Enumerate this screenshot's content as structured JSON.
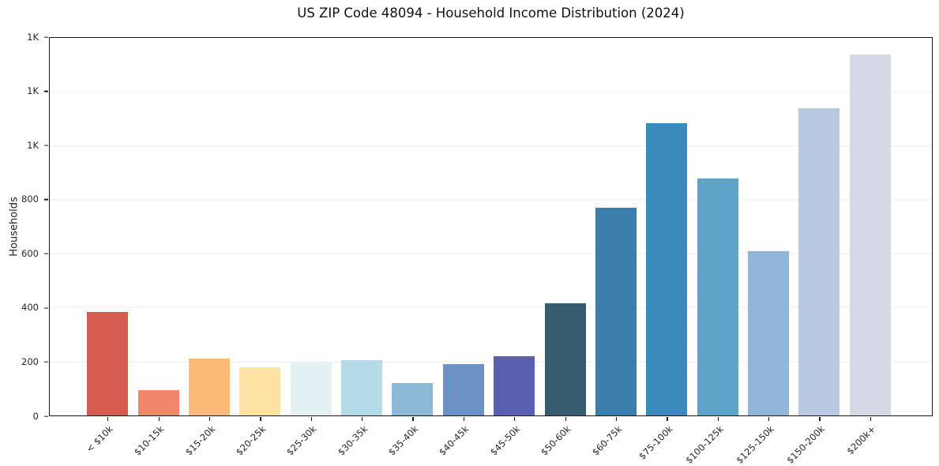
{
  "figure": {
    "title": "US ZIP Code 48094 - Household Income Distribution (2024)",
    "y_axis_label": "Households"
  },
  "chart_data": {
    "type": "bar",
    "title": "US ZIP Code 48094 - Household Income Distribution (2024)",
    "xlabel": "",
    "ylabel": "Households",
    "ylim": [
      0,
      1400
    ],
    "grid": "horizontal",
    "legend": "none",
    "categories": [
      "< $10k",
      "$10-15k",
      "$15-20k",
      "$20-25k",
      "$25-30k",
      "$30-35k",
      "$35-40k",
      "$40-45k",
      "$45-50k",
      "$50-60k",
      "$60-75k",
      "$75-100k",
      "$100-125k",
      "$125-150k",
      "$150-200k",
      "$200k+"
    ],
    "values": [
      385,
      95,
      210,
      180,
      195,
      205,
      120,
      190,
      220,
      415,
      770,
      1085,
      880,
      610,
      1140,
      1340
    ],
    "bar_colors": [
      "#d65c51",
      "#f0876a",
      "#fbba78",
      "#fde2a4",
      "#e3f0f4",
      "#b4dbe7",
      "#8db9d7",
      "#6b91c5",
      "#5a5fae",
      "#375c70",
      "#3b7dab",
      "#3a8abe",
      "#5ea4c8",
      "#91b5d8",
      "#b9c9e1",
      "#d6d8e7"
    ],
    "yticks": [
      {
        "value": 0,
        "label": "0"
      },
      {
        "value": 200,
        "label": "200"
      },
      {
        "value": 400,
        "label": "400"
      },
      {
        "value": 600,
        "label": "600"
      },
      {
        "value": 800,
        "label": "800"
      },
      {
        "value": 1000,
        "label": "1K"
      },
      {
        "value": 1200,
        "label": "1K"
      },
      {
        "value": 1400,
        "label": "1K"
      }
    ]
  }
}
